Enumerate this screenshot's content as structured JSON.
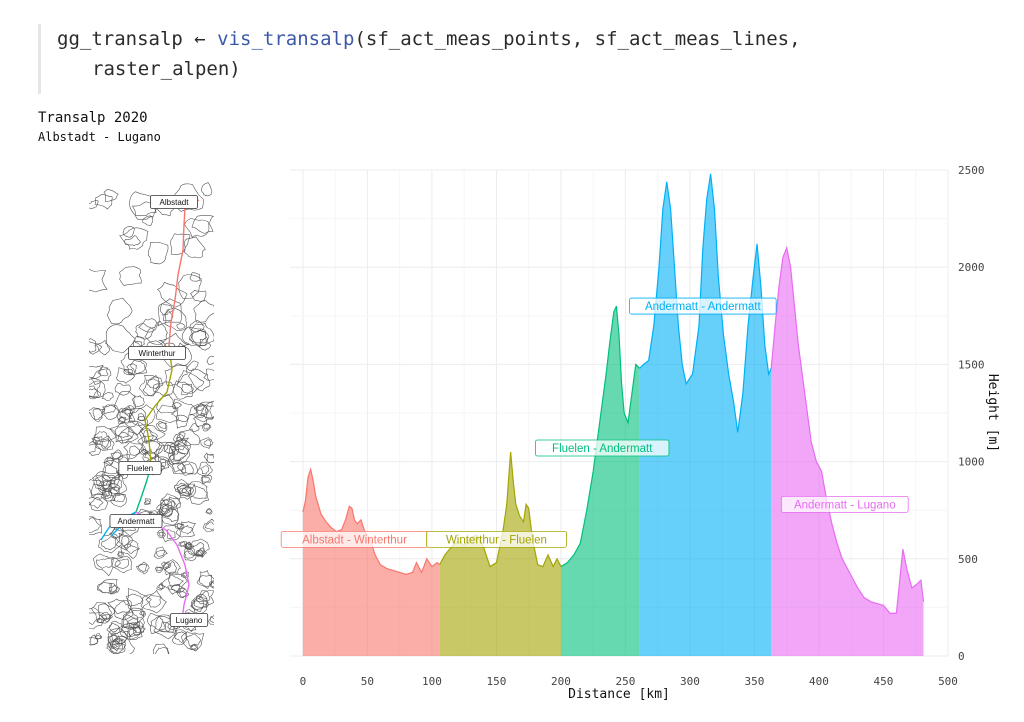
{
  "code": {
    "line1_prefix": "gg_transalp ← ",
    "line1_fn": "vis_transalp",
    "line1_args": "(sf_act_meas_points, sf_act_meas_lines,",
    "line2": "raster_alpen)"
  },
  "colors": {
    "seg1": "#F8766D",
    "seg2": "#A3A500",
    "seg3": "#00BF7D",
    "seg4": "#00B0F6",
    "seg5": "#E76BF3"
  },
  "map": {
    "labels": [
      "Albstadt",
      "Winterthur",
      "Fluelen",
      "Andermatt",
      "Lugano"
    ]
  },
  "chart_data": {
    "type": "area",
    "title": "Transalp 2020",
    "subtitle": "Albstadt - Lugano",
    "xlabel": "Distance [km]",
    "ylabel": "Height [m]",
    "xlim": [
      -10,
      500
    ],
    "ylim": [
      0,
      2500
    ],
    "x_ticks": [
      0,
      50,
      100,
      150,
      200,
      250,
      300,
      350,
      400,
      450,
      500
    ],
    "y_ticks": [
      0,
      500,
      1000,
      1500,
      2000,
      2500
    ],
    "grid": true,
    "y_axis_position": "right",
    "series": [
      {
        "name": "Albstadt - Winterthur",
        "label_at": [
          40,
          600
        ],
        "x": [
          0,
          2,
          4,
          6,
          8,
          10,
          14,
          18,
          22,
          26,
          30,
          33,
          36,
          38,
          40,
          42,
          45,
          48,
          52,
          56,
          60,
          65,
          70,
          75,
          80,
          85,
          88,
          92,
          96,
          100,
          104,
          106
        ],
        "values": [
          740,
          800,
          920,
          960,
          900,
          820,
          730,
          690,
          660,
          640,
          650,
          700,
          770,
          760,
          700,
          680,
          700,
          640,
          600,
          520,
          470,
          450,
          440,
          430,
          420,
          430,
          480,
          430,
          500,
          460,
          480,
          470
        ]
      },
      {
        "name": "Winterthur - Fluelen",
        "label_at": [
          150,
          600
        ],
        "x": [
          106,
          110,
          115,
          120,
          125,
          130,
          135,
          140,
          145,
          150,
          155,
          158,
          161,
          163,
          165,
          168,
          171,
          173,
          175,
          178,
          182,
          186,
          190,
          194,
          197,
          200
        ],
        "values": [
          470,
          520,
          560,
          590,
          570,
          610,
          620,
          560,
          460,
          480,
          640,
          780,
          1050,
          900,
          780,
          720,
          690,
          780,
          760,
          600,
          470,
          460,
          520,
          460,
          500,
          460
        ]
      },
      {
        "name": "Fluelen - Andermatt",
        "label_at": [
          232,
          1070
        ],
        "x": [
          200,
          205,
          210,
          215,
          220,
          225,
          230,
          235,
          238,
          241,
          243,
          245,
          247,
          249,
          252,
          255,
          258,
          261
        ],
        "values": [
          460,
          480,
          520,
          580,
          750,
          950,
          1200,
          1450,
          1620,
          1770,
          1800,
          1650,
          1400,
          1250,
          1200,
          1350,
          1500,
          1480
        ]
      },
      {
        "name": "Andermatt - Andermatt",
        "label_at": [
          310,
          1800
        ],
        "x": [
          261,
          264,
          268,
          272,
          276,
          279,
          282,
          285,
          288,
          291,
          294,
          297,
          302,
          307,
          310,
          313,
          316,
          319,
          322,
          326,
          330,
          334,
          337,
          341,
          345,
          349,
          352,
          355,
          358,
          361,
          363
        ],
        "values": [
          1480,
          1500,
          1520,
          1700,
          2000,
          2300,
          2440,
          2300,
          2000,
          1700,
          1500,
          1400,
          1450,
          1700,
          2100,
          2350,
          2480,
          2300,
          1950,
          1650,
          1450,
          1300,
          1150,
          1350,
          1700,
          1950,
          2120,
          1900,
          1600,
          1450,
          1480
        ]
      },
      {
        "name": "Andermatt - Lugano",
        "label_at": [
          420,
          780
        ],
        "x": [
          363,
          366,
          369,
          372,
          375,
          378,
          381,
          384,
          387,
          390,
          394,
          398,
          402,
          406,
          410,
          414,
          418,
          422,
          426,
          430,
          435,
          440,
          445,
          450,
          455,
          460,
          462,
          465,
          468,
          472,
          476,
          479,
          481
        ],
        "values": [
          1480,
          1700,
          1900,
          2050,
          2100,
          2000,
          1800,
          1600,
          1450,
          1300,
          1100,
          1000,
          950,
          800,
          680,
          580,
          500,
          450,
          400,
          350,
          300,
          280,
          270,
          260,
          220,
          220,
          350,
          550,
          450,
          350,
          370,
          390,
          280
        ]
      }
    ]
  }
}
